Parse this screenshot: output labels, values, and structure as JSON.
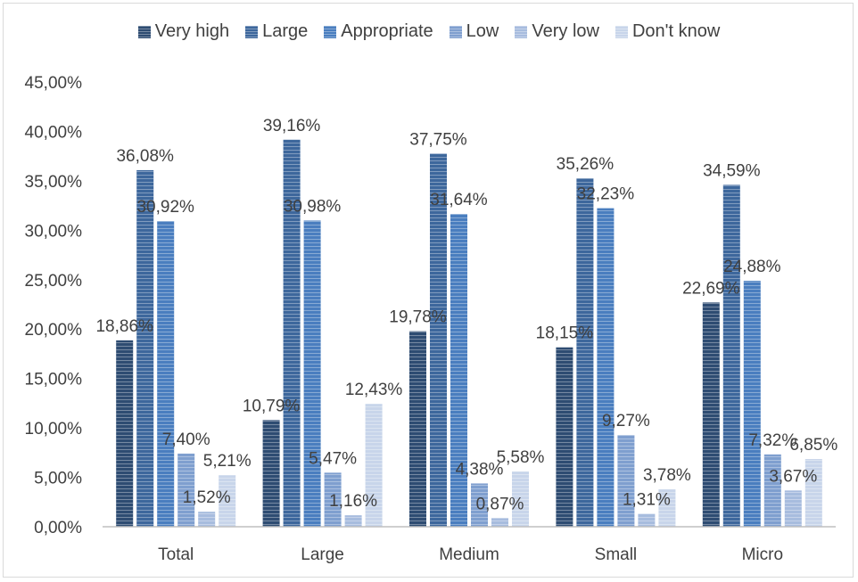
{
  "chart_data": {
    "type": "bar",
    "categories": [
      "Total",
      "Large",
      "Medium",
      "Small",
      "Micro"
    ],
    "series": [
      {
        "name": "Very high",
        "color": "#2e4c72",
        "values": [
          18.86,
          10.79,
          19.78,
          18.15,
          22.69
        ],
        "labels": [
          "18,86%",
          "10,79%",
          "19,78%",
          "18,15%",
          "22,69%"
        ]
      },
      {
        "name": "Large",
        "color": "#3d679c",
        "values": [
          36.08,
          39.16,
          37.75,
          35.26,
          34.59
        ],
        "labels": [
          "36,08%",
          "39,16%",
          "37,75%",
          "35,26%",
          "34,59%"
        ]
      },
      {
        "name": "Appropriate",
        "color": "#4a7ebf",
        "values": [
          30.92,
          30.98,
          31.64,
          32.23,
          24.88
        ],
        "labels": [
          "30,92%",
          "30,98%",
          "31,64%",
          "32,23%",
          "24,88%"
        ]
      },
      {
        "name": "Low",
        "color": "#7f9fcf",
        "values": [
          7.4,
          5.47,
          4.38,
          9.27,
          7.32
        ],
        "labels": [
          "7,40%",
          "5,47%",
          "4,38%",
          "9,27%",
          "7,32%"
        ]
      },
      {
        "name": "Very low",
        "color": "#a7bcde",
        "values": [
          1.52,
          1.16,
          0.87,
          1.31,
          3.67
        ],
        "labels": [
          "1,52%",
          "1,16%",
          "0,87%",
          "1,31%",
          "3,67%"
        ]
      },
      {
        "name": "Don't know",
        "color": "#c8d5ea",
        "values": [
          5.21,
          12.43,
          5.58,
          3.78,
          6.85
        ],
        "labels": [
          "5,21%",
          "12,43%",
          "5,58%",
          "3,78%",
          "6,85%"
        ]
      }
    ],
    "y_ticks": [
      "0,00%",
      "5,00%",
      "10,00%",
      "15,00%",
      "20,00%",
      "25,00%",
      "30,00%",
      "35,00%",
      "40,00%",
      "45,00%"
    ],
    "ylim": [
      0,
      45
    ],
    "legend_position": "top",
    "grid": false
  }
}
